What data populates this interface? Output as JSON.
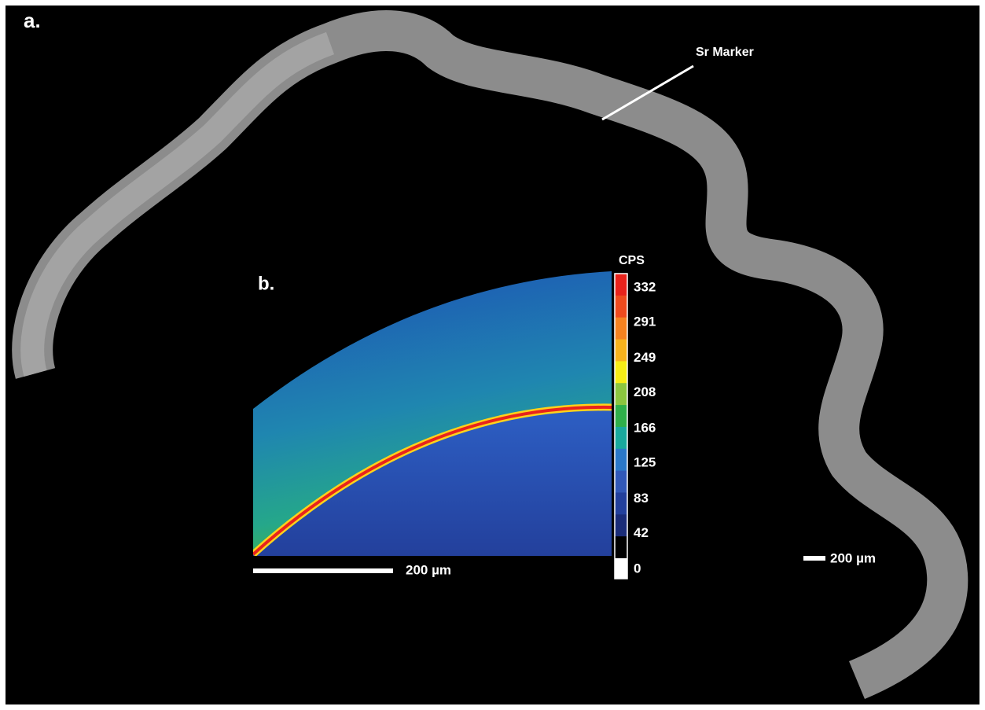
{
  "panel_a": {
    "label": "a.",
    "annotation": "Sr Marker",
    "scale_bar": "200 µm"
  },
  "panel_b": {
    "label": "b.",
    "scale_bar": "200 µm",
    "colorbar": {
      "title": "CPS",
      "ticks": [
        332,
        291,
        249,
        208,
        166,
        125,
        83,
        42,
        0
      ]
    }
  }
}
